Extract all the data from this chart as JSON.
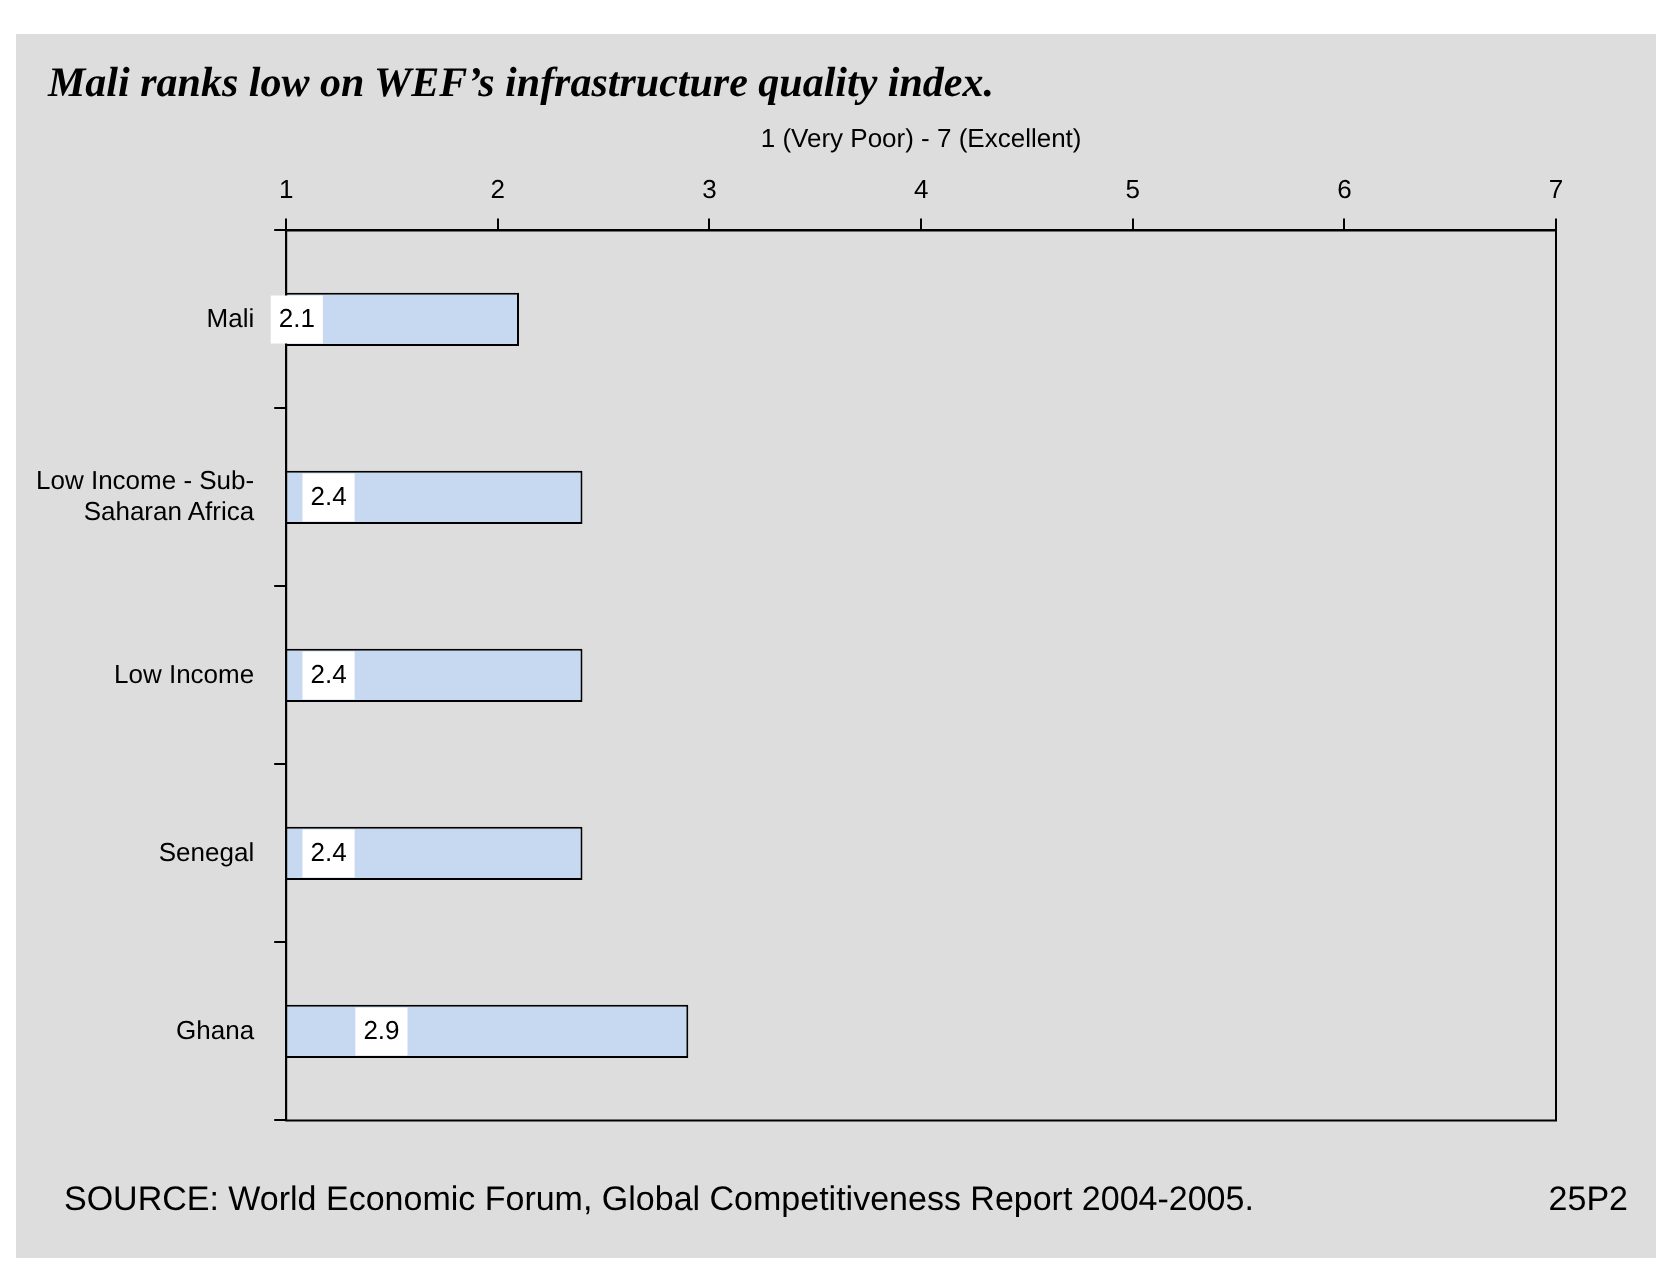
{
  "chart_data": {
    "type": "bar",
    "orientation": "horizontal",
    "title": "Mali ranks low on WEF’s infrastructure quality index.",
    "xlabel": "1 (Very Poor) - 7 (Excellent)",
    "categories": [
      "Mali",
      "Low Income - Sub-Saharan Africa",
      "Low Income",
      "Senegal",
      "Ghana"
    ],
    "values": [
      2.1,
      2.4,
      2.4,
      2.4,
      2.9
    ],
    "color": "#c6d9f0",
    "xlim": [
      1,
      7
    ],
    "xticks": [
      1,
      2,
      3,
      4,
      5,
      6,
      7
    ],
    "data_labels": true,
    "grid": false,
    "legend": false,
    "annotations": [
      "SOURCE: World Economic Forum, Global Competitiveness Report 2004-2005.",
      "25P2"
    ]
  }
}
